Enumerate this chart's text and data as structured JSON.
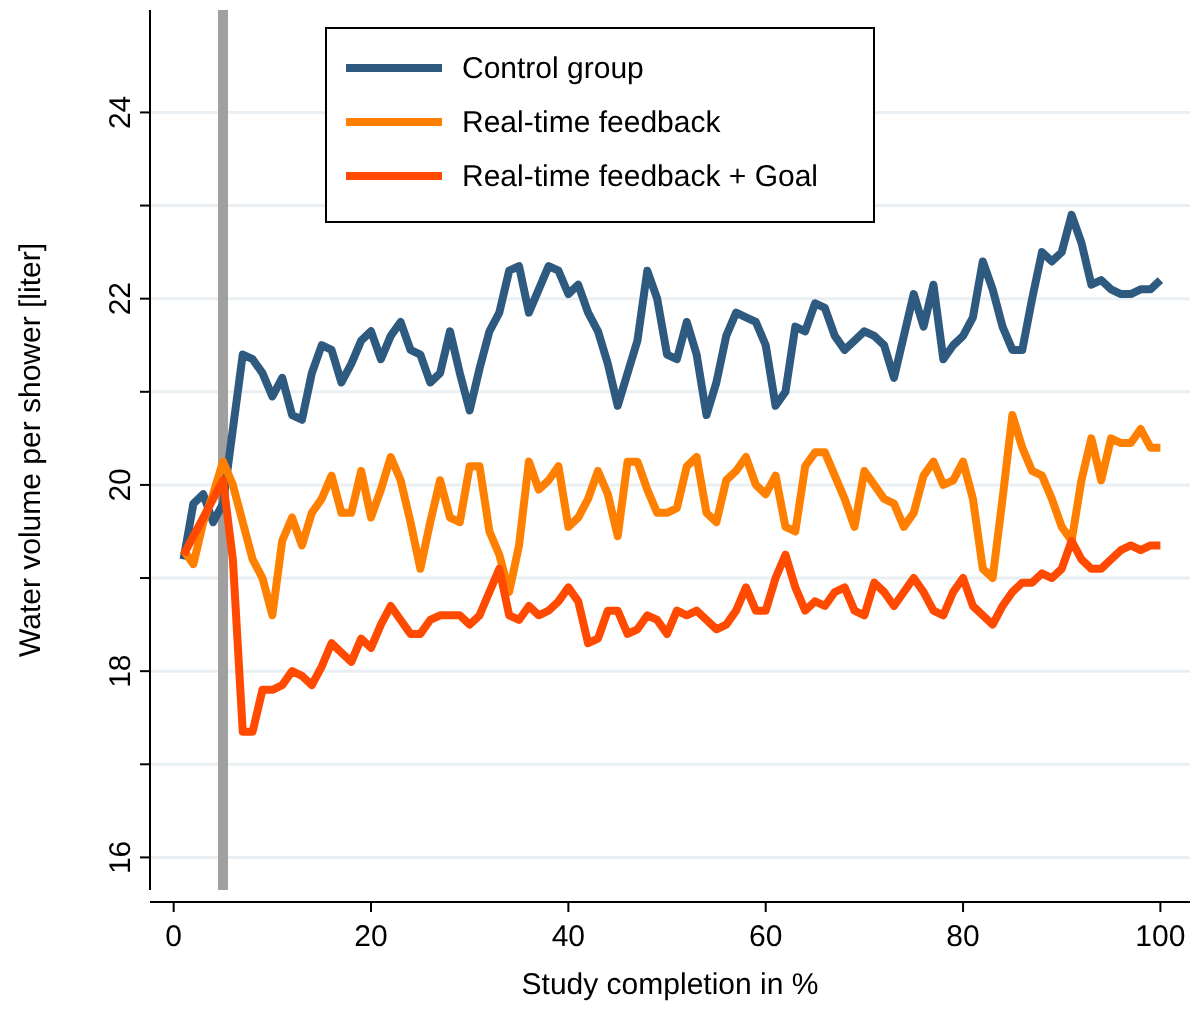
{
  "chart_data": {
    "type": "line",
    "xlabel": "Study completion in %",
    "ylabel": "Water volume per shower [liter]",
    "x": [
      1,
      2,
      3,
      4,
      5,
      6,
      7,
      8,
      9,
      10,
      11,
      12,
      13,
      14,
      15,
      16,
      17,
      18,
      19,
      20,
      21,
      22,
      23,
      24,
      25,
      26,
      27,
      28,
      29,
      30,
      31,
      32,
      33,
      34,
      35,
      36,
      37,
      38,
      39,
      40,
      41,
      42,
      43,
      44,
      45,
      46,
      47,
      48,
      49,
      50,
      51,
      52,
      53,
      54,
      55,
      56,
      57,
      58,
      59,
      60,
      61,
      62,
      63,
      64,
      65,
      66,
      67,
      68,
      69,
      70,
      71,
      72,
      73,
      74,
      75,
      76,
      77,
      78,
      79,
      80,
      81,
      82,
      83,
      84,
      85,
      86,
      87,
      88,
      89,
      90,
      91,
      92,
      93,
      94,
      95,
      96,
      97,
      98,
      99,
      100
    ],
    "series": [
      {
        "name": "Control group",
        "color": "#2f5a80",
        "values": [
          19.2,
          19.8,
          19.9,
          19.6,
          19.8,
          20.6,
          21.4,
          21.35,
          21.2,
          20.95,
          21.15,
          20.75,
          20.7,
          21.2,
          21.5,
          21.45,
          21.1,
          21.3,
          21.55,
          21.65,
          21.35,
          21.6,
          21.75,
          21.45,
          21.4,
          21.1,
          21.2,
          21.65,
          21.2,
          20.8,
          21.25,
          21.65,
          21.85,
          22.3,
          22.35,
          21.85,
          22.1,
          22.35,
          22.3,
          22.05,
          22.15,
          21.85,
          21.65,
          21.3,
          20.85,
          21.2,
          21.55,
          22.3,
          22.0,
          21.4,
          21.35,
          21.75,
          21.4,
          20.75,
          21.1,
          21.6,
          21.85,
          21.8,
          21.75,
          21.5,
          20.85,
          21.0,
          21.7,
          21.65,
          21.95,
          21.9,
          21.6,
          21.45,
          21.55,
          21.65,
          21.6,
          21.5,
          21.15,
          21.6,
          22.05,
          21.7,
          22.15,
          21.35,
          21.5,
          21.6,
          21.8,
          22.4,
          22.1,
          21.7,
          21.45,
          21.45,
          22.0,
          22.5,
          22.4,
          22.5,
          22.9,
          22.6,
          22.15,
          22.2,
          22.1,
          22.05,
          22.05,
          22.1,
          22.1,
          22.2
        ]
      },
      {
        "name": "Real-time feedback",
        "color": "#ff8000",
        "values": [
          19.3,
          19.15,
          19.6,
          19.9,
          20.25,
          20.0,
          19.6,
          19.2,
          19.0,
          18.6,
          19.4,
          19.65,
          19.35,
          19.7,
          19.85,
          20.1,
          19.7,
          19.7,
          20.15,
          19.65,
          19.95,
          20.3,
          20.05,
          19.6,
          19.1,
          19.6,
          20.05,
          19.65,
          19.6,
          20.2,
          20.2,
          19.5,
          19.25,
          18.85,
          19.35,
          20.25,
          19.95,
          20.05,
          20.2,
          19.55,
          19.65,
          19.85,
          20.15,
          19.9,
          19.45,
          20.25,
          20.25,
          19.95,
          19.7,
          19.7,
          19.75,
          20.2,
          20.3,
          19.7,
          19.6,
          20.05,
          20.15,
          20.3,
          20.0,
          19.9,
          20.1,
          19.55,
          19.5,
          20.2,
          20.35,
          20.35,
          20.1,
          19.85,
          19.55,
          20.15,
          20.0,
          19.85,
          19.8,
          19.55,
          19.7,
          20.1,
          20.25,
          20.0,
          20.05,
          20.25,
          19.85,
          19.1,
          19.0,
          19.85,
          20.75,
          20.4,
          20.15,
          20.1,
          19.85,
          19.55,
          19.4,
          20.05,
          20.5,
          20.05,
          20.5,
          20.45,
          20.45,
          20.6,
          20.4,
          20.4
        ]
      },
      {
        "name": "Real-time feedback + Goal",
        "color": "#ff4a00",
        "values": [
          19.25,
          19.45,
          19.65,
          19.85,
          20.05,
          19.2,
          17.35,
          17.35,
          17.8,
          17.8,
          17.85,
          18.0,
          17.95,
          17.85,
          18.05,
          18.3,
          18.2,
          18.1,
          18.35,
          18.25,
          18.5,
          18.7,
          18.55,
          18.4,
          18.4,
          18.55,
          18.6,
          18.6,
          18.6,
          18.5,
          18.6,
          18.85,
          19.1,
          18.6,
          18.55,
          18.7,
          18.6,
          18.65,
          18.75,
          18.9,
          18.75,
          18.3,
          18.35,
          18.65,
          18.65,
          18.4,
          18.45,
          18.6,
          18.55,
          18.4,
          18.65,
          18.6,
          18.65,
          18.55,
          18.45,
          18.5,
          18.65,
          18.9,
          18.65,
          18.65,
          19.0,
          19.25,
          18.9,
          18.65,
          18.75,
          18.7,
          18.85,
          18.9,
          18.65,
          18.6,
          18.95,
          18.85,
          18.7,
          18.85,
          19.0,
          18.85,
          18.65,
          18.6,
          18.85,
          19.0,
          18.7,
          18.6,
          18.5,
          18.7,
          18.85,
          18.95,
          18.95,
          19.05,
          19.0,
          19.1,
          19.4,
          19.2,
          19.1,
          19.1,
          19.2,
          19.3,
          19.35,
          19.3,
          19.35,
          19.35
        ]
      }
    ],
    "xlim": [
      -2.4,
      103
    ],
    "ylim": [
      15.65,
      25.1
    ],
    "xticks": [
      0,
      20,
      40,
      60,
      80,
      100
    ],
    "yticks": [
      16,
      {
        "value": 17,
        "label": null
      },
      18,
      {
        "value": 19,
        "label": null
      },
      20,
      {
        "value": 21,
        "label": null
      },
      22,
      {
        "value": 23,
        "label": null
      },
      24
    ],
    "grid": "y",
    "legend": "top",
    "line_style": "solid",
    "ref_lines": [
      {
        "axis": "x",
        "value": 5,
        "color": "#a0a0a0"
      }
    ]
  }
}
